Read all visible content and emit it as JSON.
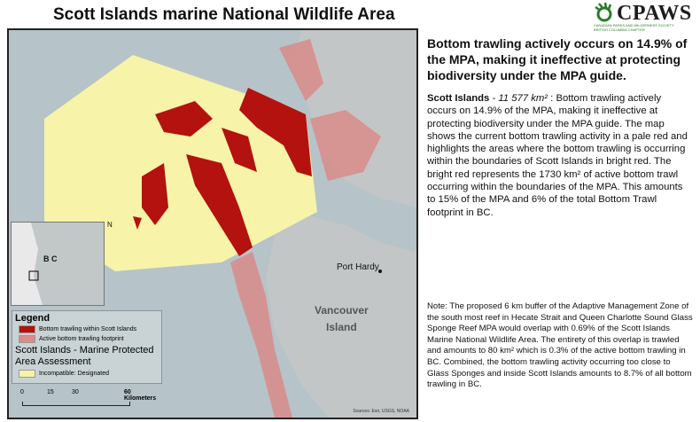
{
  "title": "Scott Islands marine National Wildlife Area",
  "logo": {
    "name": "CPAWS",
    "subtitle": "CANADIAN PARKS AND WILDERNESS SOCIETY",
    "chapter": "BRITISH COLUMBIA CHAPTER"
  },
  "map": {
    "labels": {
      "port_hardy": "Port Hardy",
      "vancouver": "Vancouver",
      "island": "Island",
      "north": "N",
      "inset_bc": "B C"
    },
    "colors": {
      "within": "#b3120e",
      "footprint": "#d98b8a",
      "designated": "#f7f3a8",
      "sea": "#b6c3c8",
      "land": "#c3c6c6"
    },
    "legend": {
      "title": "Legend",
      "items": [
        {
          "label": "Bottom trawling within Scott Islands"
        },
        {
          "label": "Active bottom trawling footprint"
        }
      ],
      "group_title": "Scott Islands - Marine Protected Area Assessment",
      "group_items": [
        {
          "label": "Incompatible: Designated"
        }
      ]
    },
    "scale": {
      "ticks": [
        "0",
        "15",
        "30",
        "60 Kilometers"
      ]
    },
    "sources": "Sources: Esri, USGS, NOAA"
  },
  "headline": "Bottom trawling actively occurs on 14.9% of the MPA, making it ineffective at protecting biodiversity under the MPA guide.",
  "body1": {
    "name": "Scott Islands",
    "area": " - 11 577 km²",
    "text": " : Bottom trawling actively occurs on 14.9% of the MPA, making it ineffective at protecting biodiversity under the MPA guide. The map shows the current bottom trawling activity in a pale red and highlights the areas where the bottom trawling is occurring within the boundaries of Scott Islands in bright red. The bright red represents the 1730 km² of active bottom trawl occurring within the boundaries of the MPA. This amounts to 15% of the MPA and 6% of the total Bottom Trawl footprint in BC."
  },
  "body2": "Note: The proposed 6 km buffer of the Adaptive Management Zone of the south most reef in Hecate Strait and Queen Charlotte Sound Glass Sponge Reef MPA would overlap with 0.69% of the Scott Islands Marine National Wildlife Area. The entirety of this overlap is trawled and amounts to 80 km² which is 0.3% of the active bottom trawling in BC. Combined, the bottom trawling activity occurring too close to Glass Sponges and inside Scott Islands amounts to 8.7% of all bottom trawling in BC."
}
